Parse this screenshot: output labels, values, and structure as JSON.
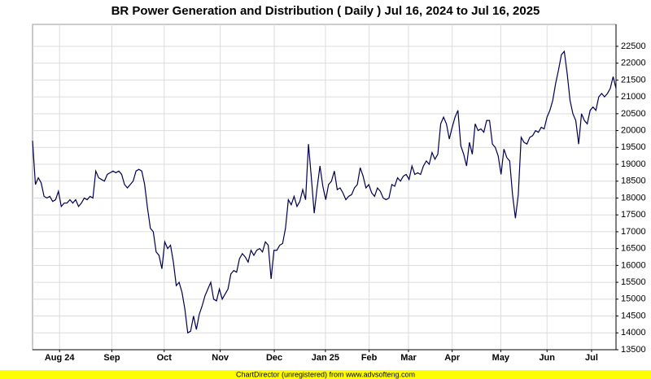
{
  "chart_data": {
    "type": "line",
    "title": "BR Power Generation and Distribution ( Daily ) Jul 16, 2024 to Jul 16, 2025",
    "footer": "ChartDirector (unregistered) from www.advsofteng.com",
    "series": [
      {
        "name": "BR Power Generation and Distribution",
        "color": "#000050",
        "values": [
          19700,
          18400,
          18600,
          18450,
          18050,
          18000,
          18050,
          17900,
          17950,
          18200,
          17750,
          17850,
          17850,
          17950,
          17850,
          17950,
          17750,
          17850,
          18000,
          17950,
          18050,
          18000,
          18800,
          18600,
          18550,
          18500,
          18700,
          18750,
          18800,
          18750,
          18800,
          18700,
          18400,
          18300,
          18400,
          18500,
          18800,
          18850,
          18800,
          18400,
          17700,
          17100,
          17000,
          16400,
          16300,
          15900,
          16700,
          16500,
          16600,
          16100,
          15400,
          15500,
          15200,
          14700,
          14000,
          14050,
          14500,
          14100,
          14550,
          14800,
          15100,
          15300,
          15500,
          15000,
          14950,
          15300,
          15000,
          15150,
          15300,
          15750,
          15850,
          15800,
          16200,
          16350,
          16250,
          16100,
          16450,
          16300,
          16450,
          16500,
          16400,
          16700,
          16600,
          15600,
          16450,
          16450,
          16600,
          16650,
          17100,
          17950,
          17800,
          18050,
          17750,
          17900,
          18250,
          17950,
          19600,
          18600,
          17550,
          18300,
          18950,
          18350,
          17950,
          18400,
          18500,
          18800,
          18250,
          18300,
          18150,
          17950,
          18050,
          18100,
          18300,
          18400,
          18900,
          18650,
          18300,
          18400,
          18150,
          18050,
          18300,
          18200,
          18000,
          17950,
          18000,
          18400,
          18350,
          18600,
          18500,
          18650,
          18700,
          18550,
          18950,
          18700,
          18750,
          18700,
          18950,
          19100,
          19000,
          19350,
          19150,
          19300,
          20200,
          20400,
          20200,
          19750,
          20100,
          20400,
          20600,
          19550,
          19300,
          18950,
          19650,
          19300,
          20200,
          20000,
          20050,
          19950,
          20300,
          20300,
          19600,
          19500,
          19250,
          18700,
          19450,
          19200,
          19100,
          18100,
          17400,
          18100,
          19800,
          19650,
          19600,
          19800,
          19850,
          20000,
          19950,
          20100,
          20050,
          20400,
          20600,
          20900,
          21400,
          21800,
          22250,
          22350,
          21700,
          20900,
          20500,
          20300,
          19600,
          20500,
          20300,
          20200,
          20600,
          20700,
          20600,
          21000,
          21100,
          21000,
          21100,
          21250,
          21600,
          21250
        ]
      }
    ],
    "xlim": [
      0,
      203
    ],
    "xticks": [
      {
        "value": 9.4,
        "label": "Aug 24"
      },
      {
        "value": 27.6,
        "label": "Sep"
      },
      {
        "value": 45.8,
        "label": "Oct"
      },
      {
        "value": 65.3,
        "label": "Nov"
      },
      {
        "value": 84.1,
        "label": "Dec"
      },
      {
        "value": 101.9,
        "label": "Jan 25"
      },
      {
        "value": 117.1,
        "label": "Feb"
      },
      {
        "value": 130.8,
        "label": "Mar"
      },
      {
        "value": 146.0,
        "label": "Apr"
      },
      {
        "value": 162.9,
        "label": "May"
      },
      {
        "value": 179.0,
        "label": "Jun"
      },
      {
        "value": 194.5,
        "label": "Jul"
      }
    ],
    "ylim": [
      13500,
      23150
    ],
    "yticks": [
      13500,
      14000,
      14500,
      15000,
      15500,
      16000,
      16500,
      17000,
      17500,
      18000,
      18500,
      19000,
      19500,
      20000,
      20500,
      21000,
      21500,
      22000,
      22500
    ],
    "grid": true
  }
}
